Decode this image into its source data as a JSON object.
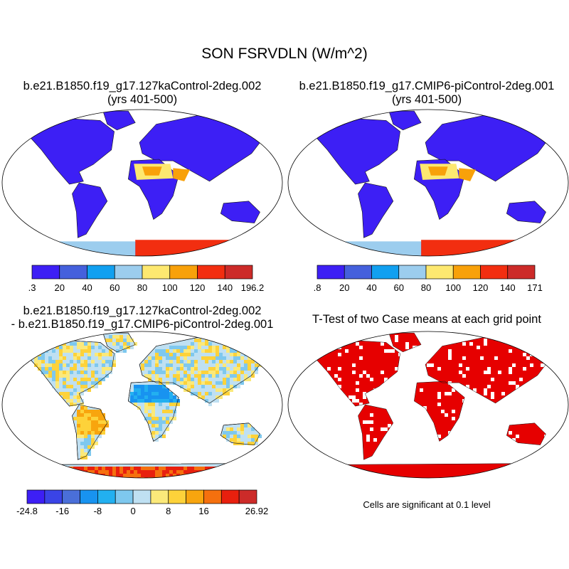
{
  "main_title": "SON FSRVDLN (W/m^2)",
  "chart_data": [
    {
      "type": "heatmap",
      "title": "b.e21.B1850.f19_g17.127kaControl-2deg.002",
      "subtitle": "(yrs 401-500)",
      "colorbar": {
        "colors": [
          "#3d1ff5",
          "#4560dc",
          "#11a0f0",
          "#9ccdee",
          "#fde870",
          "#f8a10a",
          "#f22e10",
          "#cc2b29"
        ],
        "tick_labels": [
          ".3",
          "20",
          "40",
          "60",
          "80",
          "100",
          "120",
          "140",
          "196.2"
        ]
      }
    },
    {
      "type": "heatmap",
      "title": "b.e21.B1850.f19_g17.CMIP6-piControl-2deg.001",
      "subtitle": "(yrs 401-500)",
      "colorbar": {
        "colors": [
          "#3d1ff5",
          "#4560dc",
          "#11a0f0",
          "#9ccdee",
          "#fde870",
          "#f8a10a",
          "#f22e10",
          "#cc2b29"
        ],
        "tick_labels": [
          ".8",
          "20",
          "40",
          "60",
          "80",
          "100",
          "120",
          "140",
          "171"
        ]
      }
    },
    {
      "type": "heatmap",
      "title": "b.e21.B1850.f19_g17.127kaControl-2deg.002",
      "subtitle": "- b.e21.B1850.f19_g17.CMIP6-piControl-2deg.001",
      "colorbar": {
        "colors": [
          "#3d1ff5",
          "#3a44e6",
          "#4a6fd8",
          "#1893f0",
          "#22b0f0",
          "#7ec8ee",
          "#bfe0f2",
          "#fbe97a",
          "#fdd23a",
          "#f8a50e",
          "#f5700e",
          "#e8200e",
          "#cc2b29"
        ],
        "tick_labels": [
          "-24.8",
          "",
          "-16",
          "",
          "-8",
          "",
          "0",
          "",
          "8",
          "",
          "16",
          "",
          "",
          "26.92"
        ]
      }
    },
    {
      "type": "heatmap",
      "title": "T-Test of two Case means at each grid point",
      "footnote": "Cells are significant at 0.1 level",
      "colors": {
        "significant": "#e60000"
      }
    }
  ]
}
